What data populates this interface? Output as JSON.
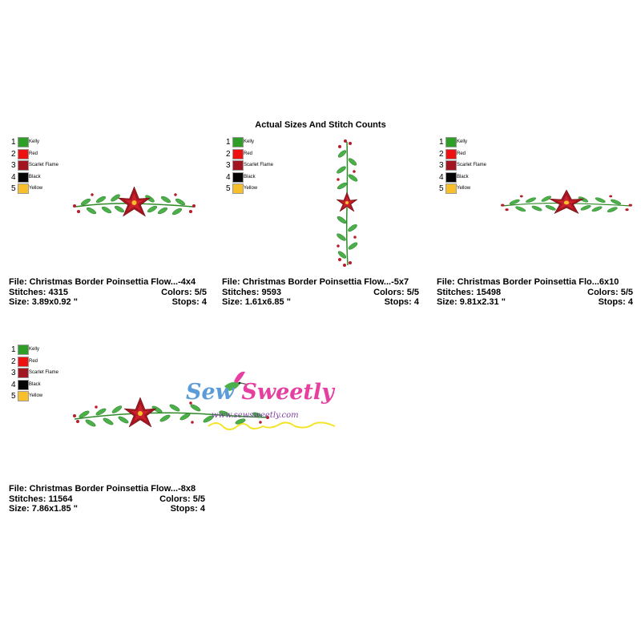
{
  "page": {
    "title": "Actual Sizes And Stitch Counts"
  },
  "legend": [
    {
      "num": "1",
      "name": "Kelly",
      "color": "#2e9e27"
    },
    {
      "num": "2",
      "name": "Red",
      "color": "#ee1111"
    },
    {
      "num": "3",
      "name": "Scarlet Flame",
      "color": "#a4161f"
    },
    {
      "num": "4",
      "name": "Black",
      "color": "#050505"
    },
    {
      "num": "5",
      "name": "Yellow",
      "color": "#f7c02b"
    }
  ],
  "designs": [
    {
      "file": "File: Christmas Border Poinsettia Flow...-4x4",
      "stitches": "Stitches: 4315",
      "colors": "Colors: 5/5",
      "size": "Size: 3.89x0.92 \"",
      "stops": "Stops: 4"
    },
    {
      "file": "File: Christmas Border Poinsettia Flow...-5x7",
      "stitches": "Stitches: 9593",
      "colors": "Colors: 5/5",
      "size": "Size: 1.61x6.85 \"",
      "stops": "Stops: 4"
    },
    {
      "file": "File: Christmas Border Poinsettia Flo...6x10",
      "stitches": "Stitches: 15498",
      "colors": "Colors: 5/5",
      "size": "Size: 9.81x2.31 \"",
      "stops": "Stops: 4"
    },
    {
      "file": "File: Christmas Border Poinsettia Flow...-8x8",
      "stitches": "Stitches: 11564",
      "colors": "Colors: 5/5",
      "size": "Size: 7.86x1.85 \"",
      "stops": "Stops: 4"
    }
  ],
  "logo": {
    "brand_part1": "Sew ",
    "brand_part2": "Sweetly",
    "url": "www.sewsweetly.com"
  }
}
